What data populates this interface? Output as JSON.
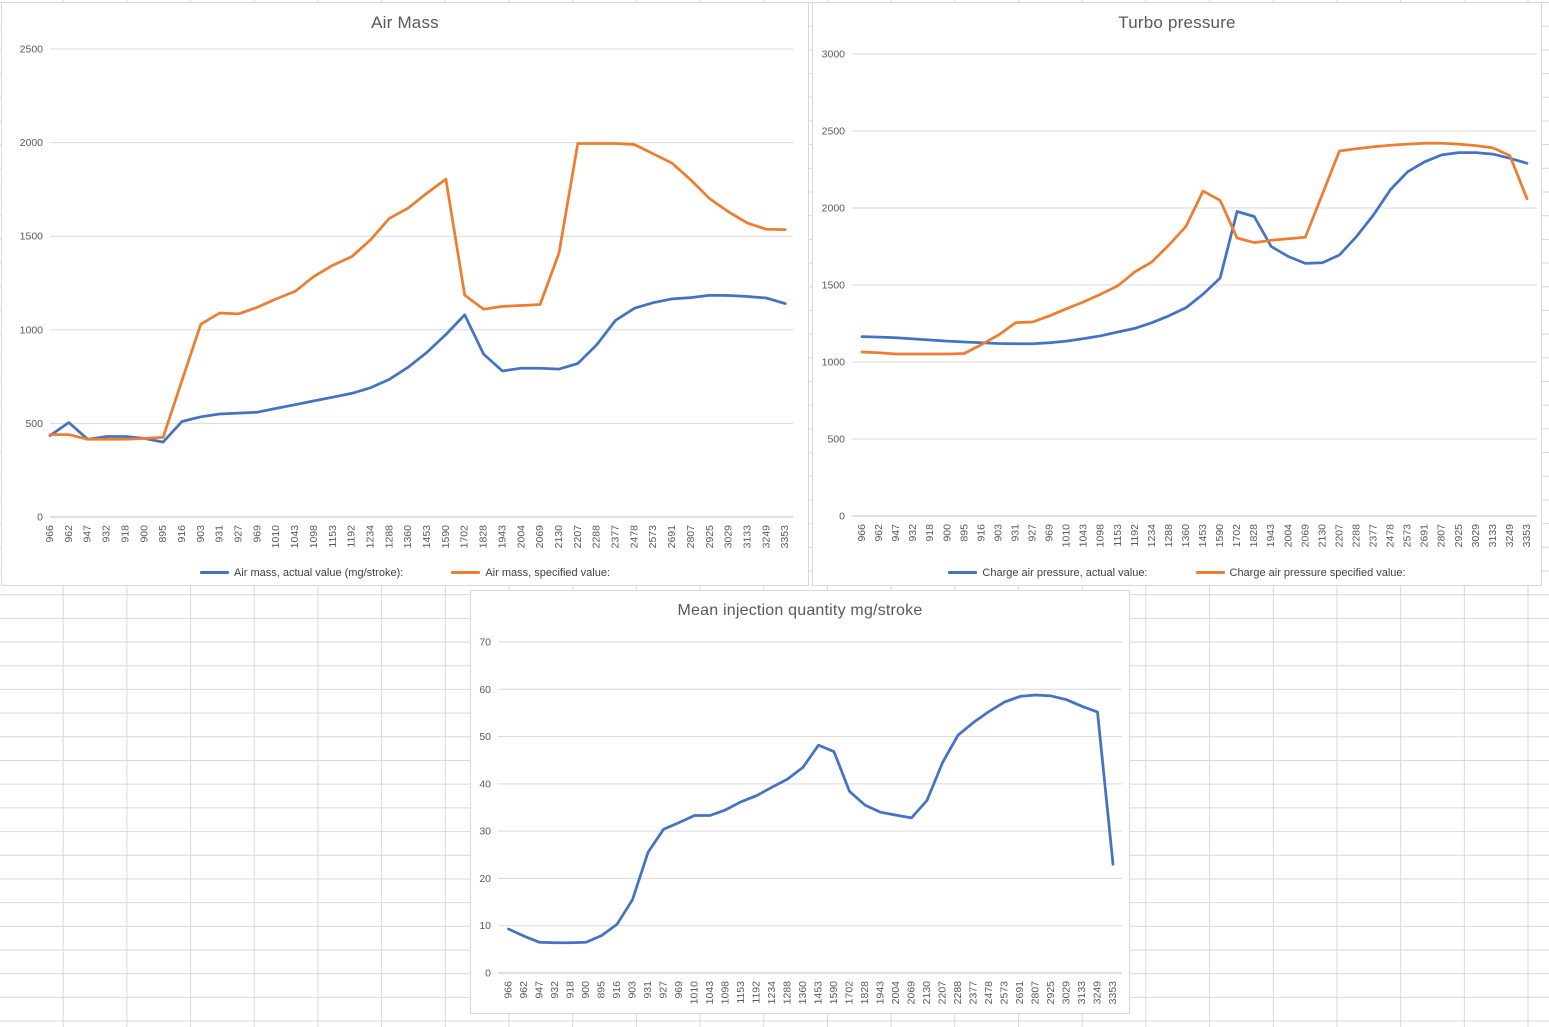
{
  "colors": {
    "series_blue": "#4472C4",
    "series_orange": "#ED7D31",
    "title_text": "#595959",
    "axis_text": "#595959",
    "gridline": "#D9D9D9",
    "axis_line": "#BFBFBF",
    "sheet_grid": "#D9D9D9",
    "chart_background": "#FFFFFF"
  },
  "chart_data": [
    {
      "id": "air-mass",
      "type": "line",
      "title": "Air Mass",
      "grid": true,
      "legend_position": "bottom",
      "ylim": [
        0,
        2500
      ],
      "yticks": [
        "0",
        "500",
        "1000",
        "1500",
        "2000",
        "2500"
      ],
      "categories": [
        "966",
        "962",
        "947",
        "932",
        "918",
        "900",
        "895",
        "916",
        "903",
        "931",
        "927",
        "969",
        "1010",
        "1043",
        "1098",
        "1153",
        "1192",
        "1234",
        "1288",
        "1360",
        "1453",
        "1590",
        "1702",
        "1828",
        "1943",
        "2004",
        "2069",
        "2130",
        "2207",
        "2288",
        "2377",
        "2478",
        "2573",
        "2691",
        "2807",
        "2925",
        "3029",
        "3133",
        "3249",
        "3353"
      ],
      "series": [
        {
          "name": "Air mass, actual value (mg/stroke):",
          "color": "#4472C4",
          "values": [
            435,
            505,
            415,
            430,
            430,
            420,
            400,
            510,
            535,
            550,
            555,
            560,
            580,
            600,
            620,
            640,
            660,
            690,
            735,
            800,
            880,
            975,
            1080,
            870,
            780,
            795,
            795,
            790,
            820,
            920,
            1050,
            1115,
            1145,
            1165,
            1172,
            1185,
            1183,
            1178,
            1170,
            1140
          ]
        },
        {
          "name": "Air mass, specified value:",
          "color": "#ED7D31",
          "values": [
            440,
            440,
            415,
            415,
            415,
            420,
            425,
            730,
            1030,
            1090,
            1085,
            1120,
            1165,
            1205,
            1285,
            1345,
            1390,
            1480,
            1595,
            1650,
            1730,
            1805,
            1185,
            1110,
            1125,
            1130,
            1135,
            1410,
            1995,
            1995,
            1995,
            1990,
            1940,
            1890,
            1800,
            1700,
            1630,
            1570,
            1537,
            1535
          ]
        }
      ]
    },
    {
      "id": "turbo-pressure",
      "type": "line",
      "title": "Turbo pressure",
      "grid": true,
      "legend_position": "bottom",
      "ylim": [
        0,
        3000
      ],
      "yticks": [
        "0",
        "500",
        "1000",
        "1500",
        "2000",
        "2500",
        "3000"
      ],
      "categories": [
        "966",
        "962",
        "947",
        "932",
        "918",
        "900",
        "895",
        "916",
        "903",
        "931",
        "927",
        "969",
        "1010",
        "1043",
        "1098",
        "1153",
        "1192",
        "1234",
        "1288",
        "1360",
        "1453",
        "1590",
        "1702",
        "1828",
        "1943",
        "2004",
        "2069",
        "2130",
        "2207",
        "2288",
        "2377",
        "2478",
        "2573",
        "2691",
        "2807",
        "2925",
        "3029",
        "3133",
        "3249",
        "3353"
      ],
      "series": [
        {
          "name": "Charge air pressure, actual value:",
          "color": "#4472C4",
          "values": [
            1165,
            1162,
            1158,
            1150,
            1143,
            1136,
            1130,
            1125,
            1120,
            1118,
            1118,
            1125,
            1136,
            1152,
            1170,
            1195,
            1218,
            1255,
            1300,
            1352,
            1440,
            1545,
            1977,
            1945,
            1750,
            1685,
            1640,
            1645,
            1695,
            1815,
            1955,
            2120,
            2235,
            2300,
            2345,
            2360,
            2360,
            2350,
            2323,
            2290
          ]
        },
        {
          "name": "Charge air pressure specified value:",
          "color": "#ED7D31",
          "values": [
            1065,
            1060,
            1052,
            1052,
            1052,
            1052,
            1055,
            1113,
            1175,
            1255,
            1260,
            1300,
            1346,
            1390,
            1440,
            1495,
            1585,
            1650,
            1760,
            1880,
            2110,
            2050,
            1805,
            1775,
            1790,
            1800,
            1810,
            2090,
            2370,
            2385,
            2398,
            2408,
            2415,
            2420,
            2420,
            2415,
            2405,
            2390,
            2340,
            2060
          ]
        }
      ]
    },
    {
      "id": "injection-quantity",
      "type": "line",
      "title": "Mean injection quantity mg/stroke",
      "grid": true,
      "legend_position": "none",
      "ylim": [
        0,
        70
      ],
      "yticks": [
        "0",
        "10",
        "20",
        "30",
        "40",
        "50",
        "60",
        "70"
      ],
      "categories": [
        "966",
        "962",
        "947",
        "932",
        "918",
        "900",
        "895",
        "916",
        "903",
        "931",
        "927",
        "969",
        "1010",
        "1043",
        "1098",
        "1153",
        "1192",
        "1234",
        "1288",
        "1360",
        "1453",
        "1590",
        "1702",
        "1828",
        "1943",
        "2004",
        "2069",
        "2130",
        "2207",
        "2288",
        "2377",
        "2478",
        "2573",
        "2691",
        "2807",
        "2925",
        "3029",
        "3133",
        "3249",
        "3353"
      ],
      "series": [
        {
          "name": "Mean injection quantity",
          "color": "#4472C4",
          "values": [
            9.3,
            7.8,
            6.5,
            6.4,
            6.4,
            6.5,
            7.9,
            10.3,
            15.5,
            25.5,
            30.4,
            31.8,
            33.3,
            33.3,
            34.5,
            36.2,
            37.5,
            39.3,
            41,
            43.5,
            48.2,
            46.8,
            38.4,
            35.5,
            34,
            33.4,
            32.8,
            36.5,
            44.5,
            50.3,
            53,
            55.3,
            57.3,
            58.5,
            58.8,
            58.6,
            57.8,
            56.4,
            55.2,
            23
          ]
        }
      ]
    }
  ]
}
